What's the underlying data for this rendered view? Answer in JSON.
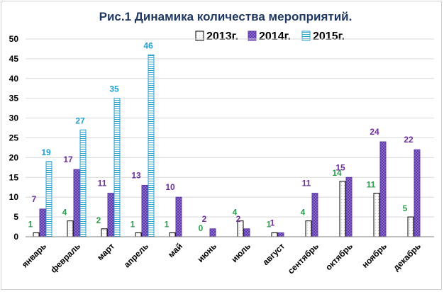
{
  "chart_data": {
    "type": "bar",
    "title": "Рис.1 Динамика  количества мероприятий.",
    "categories": [
      "январь",
      "февраль",
      "март",
      "апрель",
      "май",
      "июнь",
      "июль",
      "август",
      "сентябрь",
      "октябрь",
      "ноябрь",
      "декабрь"
    ],
    "series": [
      {
        "name": "2013г.",
        "values": [
          1,
          4,
          2,
          1,
          1,
          0,
          4,
          1,
          4,
          14,
          11,
          5
        ],
        "label_color": "#2e9e4f"
      },
      {
        "name": "2014г.",
        "values": [
          7,
          17,
          11,
          13,
          10,
          2,
          2,
          1,
          11,
          15,
          24,
          22
        ],
        "label_color": "#7030a0"
      },
      {
        "name": "2015г.",
        "values": [
          19,
          27,
          35,
          46,
          null,
          null,
          null,
          null,
          null,
          null,
          null,
          null
        ],
        "label_color": "#1fa0d0"
      }
    ],
    "ylim": [
      0,
      50
    ],
    "yticks": [
      0,
      5,
      10,
      15,
      20,
      25,
      30,
      35,
      40,
      45,
      50
    ],
    "legend_position": "top-right",
    "grid": true
  }
}
